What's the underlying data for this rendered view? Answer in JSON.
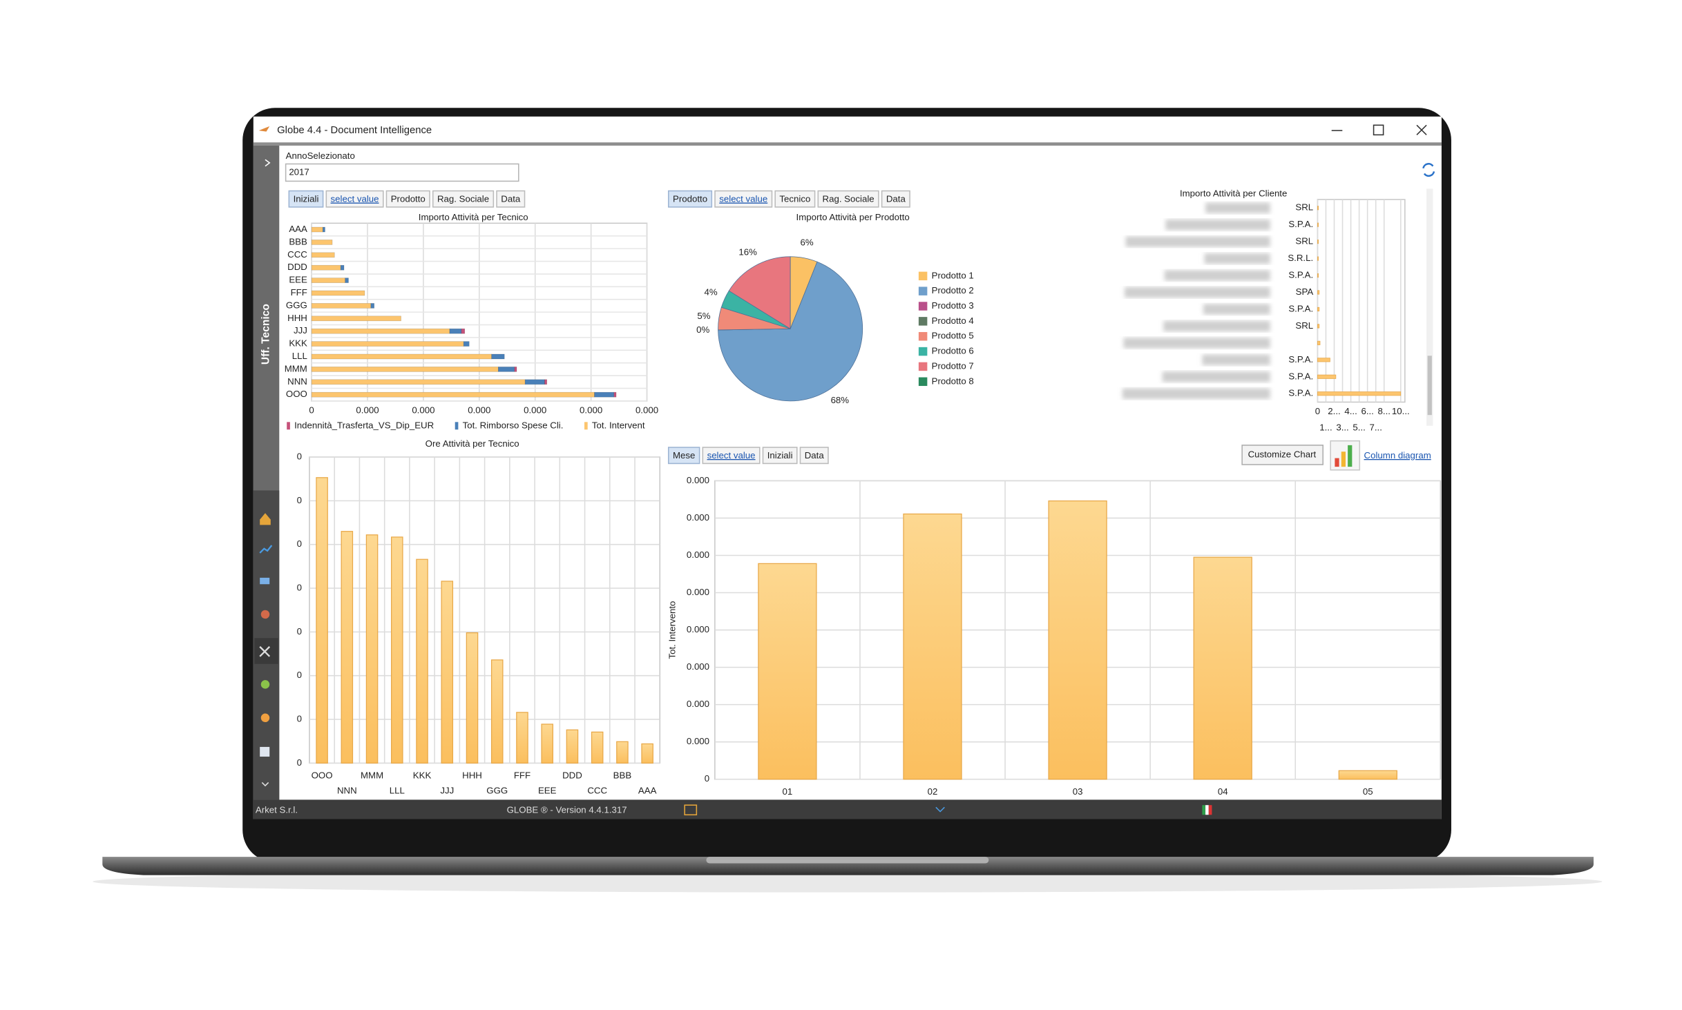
{
  "window": {
    "title": "Globe 4.4 - Document Intelligence"
  },
  "sidebar": {
    "label": "Uff. Tecnico"
  },
  "filter": {
    "label": "AnnoSelezionato",
    "value": "2017"
  },
  "tabs": [
    [
      "Iniziali",
      "select value",
      "Prodotto",
      "Rag. Sociale",
      "Data"
    ],
    [
      "Prodotto",
      "select value",
      "Tecnico",
      "Rag. Sociale",
      "Data"
    ],
    [
      "Mese",
      "select value",
      "Iniziali",
      "Data"
    ]
  ],
  "buttons": {
    "customize": "Customize Chart",
    "column": "Column diagram"
  },
  "status": {
    "company": "Arket S.r.l.",
    "version": "GLOBE ® - Version  4.4.1.317"
  },
  "chart_data": [
    {
      "type": "bar",
      "horizontal": true,
      "stacked": true,
      "title": "Importo Attività per Tecnico",
      "categories": [
        "AAA",
        "BBB",
        "CCC",
        "DDD",
        "EEE",
        "FFF",
        "GGG",
        "HHH",
        "JJJ",
        "KKK",
        "LLL",
        "MMM",
        "NNN",
        "OOO"
      ],
      "series": [
        {
          "name": "Indennità_Trasferta_VS_Dip_EUR",
          "color": "#c6527a",
          "values": [
            0,
            0,
            0,
            0,
            0,
            0,
            0,
            0,
            0.06,
            0,
            0,
            0.04,
            0.04,
            0.04
          ]
        },
        {
          "name": "Tot. Rimborso Spese Cli.",
          "color": "#4a80b8",
          "values": [
            0.04,
            0,
            0,
            0.06,
            0.06,
            0,
            0.06,
            0,
            0.21,
            0.1,
            0.23,
            0.29,
            0.35,
            0.35
          ]
        },
        {
          "name": "Tot. Intervent",
          "color": "#fcc56e",
          "values": [
            0.2,
            0.37,
            0.41,
            0.52,
            0.6,
            0.95,
            1.06,
            1.6,
            2.47,
            2.72,
            3.22,
            3.34,
            3.82,
            5.06
          ]
        }
      ],
      "xlim": [
        0,
        6
      ],
      "xticks": [
        0,
        {
          "value": 1,
          "label": "0.000"
        },
        {
          "value": 2,
          "label": "0.000"
        },
        {
          "value": 3,
          "label": "0.000"
        },
        {
          "value": 4,
          "label": "0.000"
        },
        {
          "value": 5,
          "label": "0.000"
        },
        {
          "value": 6,
          "label": "0.000"
        }
      ],
      "grid": true
    },
    {
      "type": "pie",
      "title": "Importo Attività per Prodotto",
      "categories": [
        "Prodotto 1",
        "Prodotto 2",
        "Prodotto 3",
        "Prodotto 4",
        "Prodotto 5",
        "Prodotto 6",
        "Prodotto 7",
        "Prodotto 8"
      ],
      "values": [
        6,
        68,
        0,
        0,
        5,
        4,
        16,
        0
      ],
      "value_labels": [
        "6%",
        "68%",
        null,
        "0%",
        "5%",
        "4%",
        "16%",
        null
      ],
      "colors": [
        "#fbc164",
        "#6f9fcb",
        "#b9508a",
        "#5f7a63",
        "#f08a78",
        "#3bb3a4",
        "#e8767e",
        "#2a8a5e"
      ]
    },
    {
      "type": "bar",
      "horizontal": true,
      "title": "Importo Attività per Cliente",
      "categories": [
        "SRL",
        "S.P.A.",
        "SRL",
        "S.R.L.",
        "S.P.A.",
        "SPA",
        "S.P.A.",
        "SRL",
        null,
        "S.P.A.",
        "S.P.A.",
        "S.P.A."
      ],
      "values": [
        0.1,
        0.1,
        0.1,
        0.1,
        0.1,
        0.2,
        0.2,
        0.2,
        0.3,
        1.5,
        2.2,
        10
      ],
      "color": "#fcc56e",
      "xlim": [
        0,
        10.5
      ],
      "xticks": [
        0,
        {
          "value": 1,
          "label": "1..."
        },
        {
          "value": 2,
          "label": "2..."
        },
        {
          "value": 3,
          "label": "3..."
        },
        {
          "value": 4,
          "label": "4..."
        },
        {
          "value": 5,
          "label": "5..."
        },
        {
          "value": 6,
          "label": "6..."
        },
        {
          "value": 7,
          "label": "7..."
        },
        {
          "value": 8,
          "label": "8..."
        },
        {
          "value": 10,
          "label": "10..."
        }
      ],
      "grid": true
    },
    {
      "type": "bar",
      "title": "Ore Attività per Tecnico",
      "categories": [
        "OOO",
        "NNN",
        "MMM",
        "LLL",
        "KKK",
        "JJJ",
        "HHH",
        "GGG",
        "FFF",
        "EEE",
        "DDD",
        "CCC",
        "BBB",
        "AAA"
      ],
      "values": [
        6.53,
        5.3,
        5.22,
        5.17,
        4.66,
        4.16,
        2.98,
        2.36,
        1.16,
        0.89,
        0.76,
        0.71,
        0.49,
        0.44
      ],
      "color": "#fcc56e",
      "ylim": [
        0,
        7
      ],
      "yticks": [
        0,
        {
          "value": 1,
          "label": "0"
        },
        {
          "value": 2,
          "label": "0"
        },
        {
          "value": 3,
          "label": "0"
        },
        {
          "value": 4,
          "label": "0"
        },
        {
          "value": 5,
          "label": "0"
        },
        {
          "value": 6,
          "label": "0"
        },
        {
          "value": 7,
          "label": "0"
        }
      ],
      "grid": true
    },
    {
      "type": "bar",
      "ylabel": "Tot. Intervento",
      "categories": [
        "01",
        "02",
        "03",
        "04",
        "05"
      ],
      "values": [
        5.78,
        7.11,
        7.46,
        5.95,
        0.23
      ],
      "color": "#fcc56e",
      "ylim": [
        0,
        8
      ],
      "yticks": [
        0,
        {
          "value": 1,
          "label": "0.000"
        },
        {
          "value": 2,
          "label": "0.000"
        },
        {
          "value": 3,
          "label": "0.000"
        },
        {
          "value": 4,
          "label": "0.000"
        },
        {
          "value": 5,
          "label": "0.000"
        },
        {
          "value": 6,
          "label": "0.000"
        },
        {
          "value": 7,
          "label": "0.000"
        },
        {
          "value": 8,
          "label": "0.000"
        }
      ],
      "grid": true
    }
  ]
}
